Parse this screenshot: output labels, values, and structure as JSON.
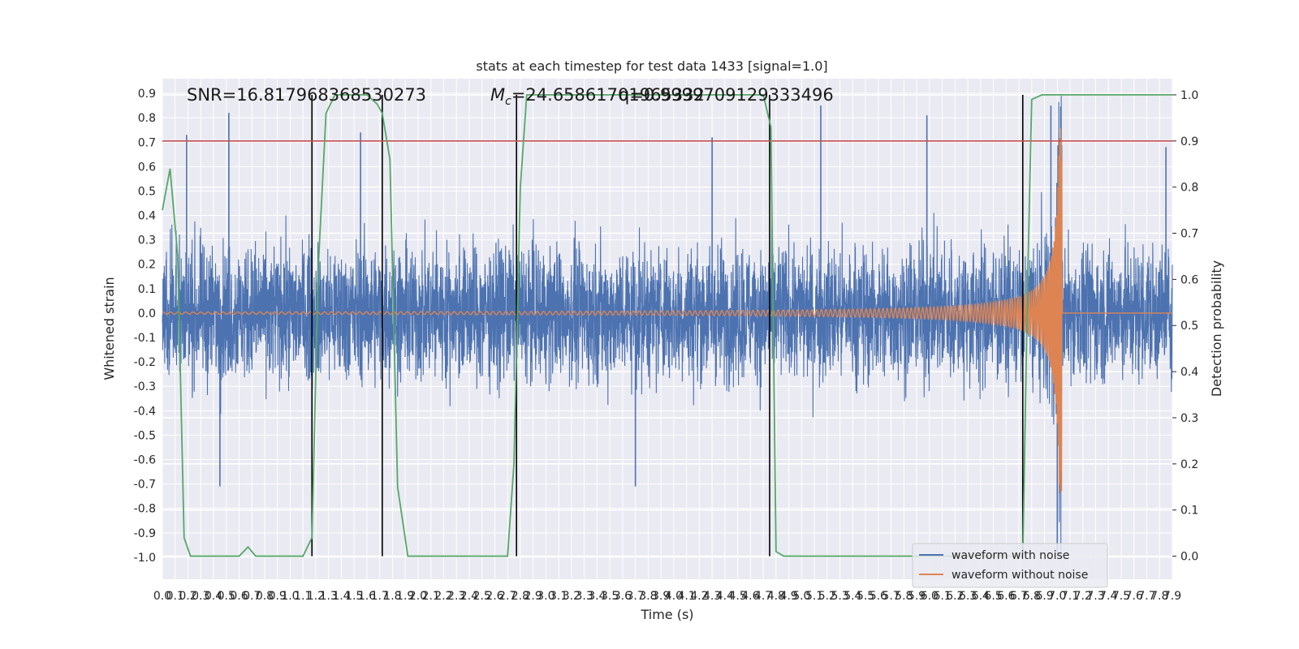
{
  "chart_data": {
    "type": "line",
    "title": "stats at each timestep for test data 1433 [signal=1.0]",
    "xlabel": "Time (s)",
    "ylabel": "Whitened strain",
    "y2label": "Detection probability",
    "xlim": [
      0,
      7.9
    ],
    "ylim": [
      -1.09,
      0.96
    ],
    "y2lim": [
      -0.05,
      1.035
    ],
    "x_ticks": [
      "0.0",
      "0.1",
      "0.2",
      "0.3",
      "0.4",
      "0.5",
      "0.6",
      "0.7",
      "0.8",
      "0.9",
      "1.0",
      "1.1",
      "1.2",
      "1.3",
      "1.4",
      "1.5",
      "1.6",
      "1.7",
      "1.8",
      "1.9",
      "2.0",
      "2.1",
      "2.2",
      "2.3",
      "2.4",
      "2.5",
      "2.6",
      "2.7",
      "2.8",
      "2.9",
      "3.0",
      "3.1",
      "3.2",
      "3.3",
      "3.4",
      "3.5",
      "3.6",
      "3.7",
      "3.8",
      "3.9",
      "4.0",
      "4.1",
      "4.2",
      "4.3",
      "4.4",
      "4.5",
      "4.6",
      "4.7",
      "4.8",
      "4.9",
      "5.0",
      "5.1",
      "5.2",
      "5.3",
      "5.4",
      "5.5",
      "5.6",
      "5.7",
      "5.8",
      "5.9",
      "6.0",
      "6.1",
      "6.2",
      "6.3",
      "6.4",
      "6.5",
      "6.6",
      "6.7",
      "6.8",
      "6.9",
      "7.0",
      "7.1",
      "7.2",
      "7.3",
      "7.4",
      "7.5",
      "7.6",
      "7.7",
      "7.8",
      "7.9"
    ],
    "y_ticks": [
      "0.9",
      "0.8",
      "0.7",
      "0.6",
      "0.5",
      "0.4",
      "0.3",
      "0.2",
      "0.1",
      "0.0",
      "-0.1",
      "-0.2",
      "-0.3",
      "-0.4",
      "-0.5",
      "-0.6",
      "-0.7",
      "-0.8",
      "-0.9",
      "-1.0"
    ],
    "y2_ticks": [
      "1.0",
      "0.9",
      "0.8",
      "0.7",
      "0.6",
      "0.5",
      "0.4",
      "0.3",
      "0.2",
      "0.1",
      "0.0"
    ],
    "grid": true,
    "legend_position": "lower-right",
    "annotations": {
      "snr": "SNR=16.817968368530273",
      "mc_prefix": "M",
      "mc_sub": "c",
      "mc_value": "=24.65861701965332",
      "q_value": "q=0.9999709129333496"
    },
    "threshold": {
      "y2": 0.9
    },
    "vlines": [
      1.17,
      1.72,
      2.77,
      4.75,
      6.73
    ],
    "series": [
      {
        "name": "waveform with noise",
        "color": "#4c72b0",
        "noise_amplitude": 0.25,
        "peaks": [
          {
            "x": 0.19,
            "y": 0.73
          },
          {
            "x": 0.52,
            "y": 0.82
          },
          {
            "x": 0.45,
            "y": -0.71
          },
          {
            "x": 1.55,
            "y": 0.74
          },
          {
            "x": 4.3,
            "y": 0.72
          },
          {
            "x": 5.15,
            "y": 0.85
          },
          {
            "x": 5.98,
            "y": 0.81
          },
          {
            "x": 6.95,
            "y": 0.85
          },
          {
            "x": 3.7,
            "y": -0.71
          },
          {
            "x": 7.0,
            "y": -1.0
          },
          {
            "x": 7.85,
            "y": 0.68
          }
        ]
      },
      {
        "name": "waveform without noise",
        "color": "#dd8452",
        "merger_time": 7.04,
        "start_amplitude": 0.004,
        "peak_amplitude": 0.76
      },
      {
        "name": "detection probability",
        "color": "#55a868",
        "axis": "y2",
        "x": [
          0.0,
          0.06,
          0.12,
          0.17,
          0.22,
          0.25,
          0.6,
          0.67,
          0.73,
          0.8,
          1.1,
          1.17,
          1.22,
          1.28,
          1.35,
          1.6,
          1.68,
          1.72,
          1.78,
          1.84,
          1.92,
          2.7,
          2.75,
          2.8,
          2.85,
          4.7,
          4.76,
          4.8,
          4.86,
          6.73,
          6.77,
          6.8,
          6.88,
          7.9
        ],
        "values": [
          0.75,
          0.84,
          0.65,
          0.04,
          0.0,
          0.0,
          0.0,
          0.02,
          0.0,
          0.0,
          0.0,
          0.04,
          0.63,
          0.96,
          1.0,
          1.0,
          0.98,
          0.96,
          0.86,
          0.15,
          0.0,
          0.0,
          0.2,
          0.8,
          1.0,
          1.0,
          0.93,
          0.01,
          0.0,
          0.0,
          0.62,
          0.99,
          1.0,
          1.0
        ]
      }
    ],
    "threshold_color": "#c44e52",
    "vline_color": "#000000"
  }
}
